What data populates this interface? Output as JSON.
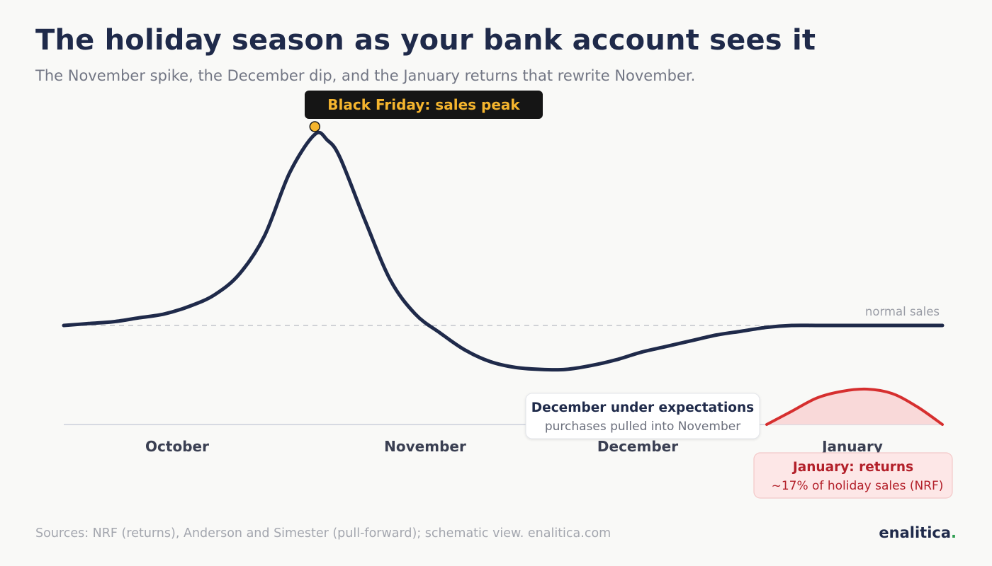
{
  "title": "The holiday season as your bank account sees it",
  "subtitle": "The November spike, the December dip, and the January returns that rewrite November.",
  "source": "Sources: NRF (returns), Anderson and Simester (pull-forward); schematic view. enalitica.com",
  "brand": {
    "name": "enalitica",
    "dot": "."
  },
  "colors": {
    "line": "#1f2a4a",
    "returns": "#d62f2f",
    "peak_marker": "#f5b52e",
    "peak_label_bg": "#151515"
  },
  "chart_data": {
    "type": "line",
    "categories": [
      "October",
      "November",
      "December",
      "January"
    ],
    "baseline_label": "normal sales",
    "series": [
      {
        "kind": "sales",
        "x": [
          0,
          0.1,
          0.2,
          0.3,
          0.4,
          0.5,
          0.6,
          0.7,
          0.8,
          0.9,
          1.0,
          1.05,
          1.1,
          1.2,
          1.3,
          1.4,
          1.5,
          1.6,
          1.7,
          1.8,
          1.9,
          2.0,
          2.1,
          2.2,
          2.3,
          2.4,
          2.5,
          2.6,
          2.7,
          2.8,
          2.9,
          3.0,
          3.1,
          3.2,
          3.3,
          3.4,
          3.5
        ],
        "y": [
          0,
          0.01,
          0.02,
          0.04,
          0.06,
          0.1,
          0.16,
          0.27,
          0.47,
          0.8,
          1.0,
          0.97,
          0.88,
          0.55,
          0.24,
          0.06,
          -0.04,
          -0.13,
          -0.19,
          -0.22,
          -0.23,
          -0.23,
          -0.21,
          -0.18,
          -0.14,
          -0.11,
          -0.08,
          -0.05,
          -0.03,
          -0.01,
          0.0,
          0.0,
          0.0,
          0.0,
          0.0,
          0.0,
          0.0
        ]
      },
      {
        "kind": "returns",
        "x": [
          2.8,
          2.9,
          3.0,
          3.1,
          3.2,
          3.3,
          3.4,
          3.5
        ],
        "y": [
          0.0,
          0.06,
          0.12,
          0.15,
          0.16,
          0.14,
          0.08,
          0.0
        ]
      }
    ],
    "annotations": {
      "peak": {
        "label": "Black Friday: sales peak"
      },
      "december": {
        "title": "December under expectations",
        "text": "purchases pulled into November"
      },
      "january": {
        "title": "January: returns",
        "text": "~17% of holiday sales (NRF)"
      }
    }
  }
}
